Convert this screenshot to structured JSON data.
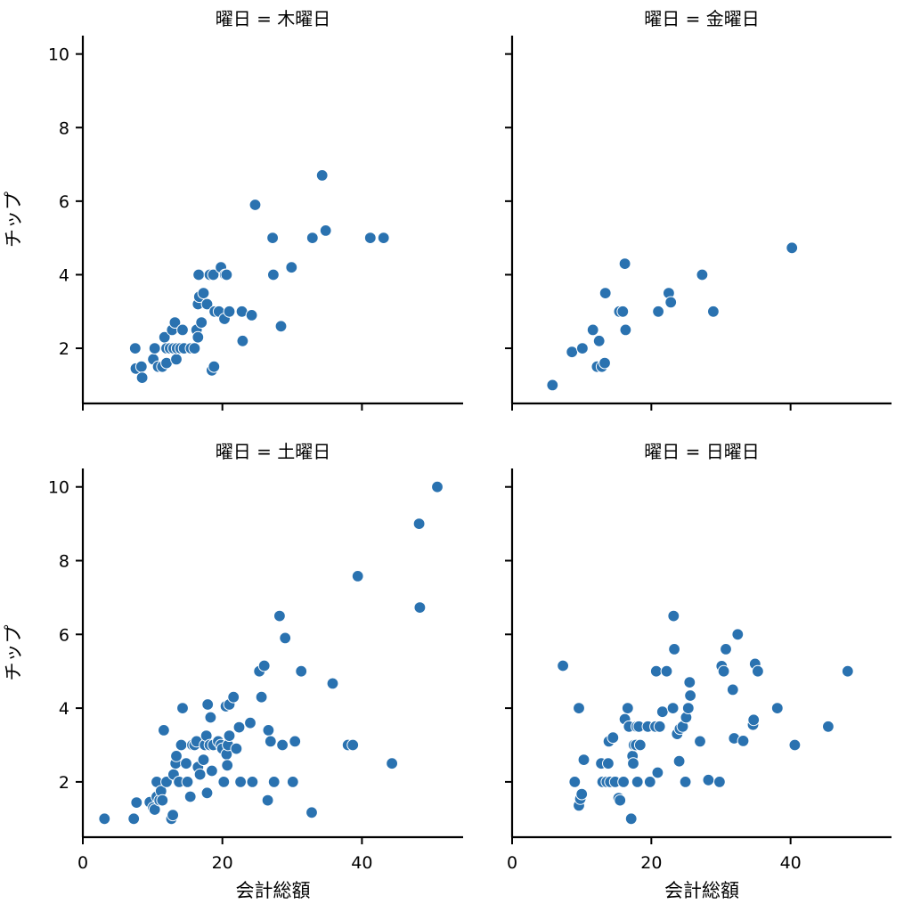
{
  "chart_data": {
    "type": "scatter",
    "xlabel": "会計総額",
    "ylabel": "チップ",
    "xlim": [
      0,
      54.5
    ],
    "ylim": [
      0.5,
      10.5
    ],
    "xticks": [
      "0",
      "20",
      "40"
    ],
    "yticks": [
      "2",
      "4",
      "6",
      "8",
      "10"
    ],
    "grid": false,
    "point_color": "#2a72b0",
    "marker_edge_color": "#ffffff",
    "panels": [
      {
        "title": "曜日 = 木曜日",
        "points": [
          [
            7.5,
            2.0
          ],
          [
            7.6,
            1.45
          ],
          [
            8.4,
            1.5
          ],
          [
            8.5,
            1.2
          ],
          [
            10.1,
            1.7
          ],
          [
            10.3,
            2.0
          ],
          [
            10.8,
            1.5
          ],
          [
            11.4,
            1.5
          ],
          [
            11.7,
            2.3
          ],
          [
            12.0,
            1.6
          ],
          [
            12.0,
            2.0
          ],
          [
            12.5,
            2.0
          ],
          [
            12.8,
            2.5
          ],
          [
            13.0,
            2.0
          ],
          [
            13.2,
            2.7
          ],
          [
            13.4,
            1.7
          ],
          [
            13.5,
            2.0
          ],
          [
            14.0,
            2.0
          ],
          [
            14.3,
            2.5
          ],
          [
            14.5,
            2.0
          ],
          [
            15.5,
            2.0
          ],
          [
            16.0,
            2.0
          ],
          [
            16.3,
            2.5
          ],
          [
            16.5,
            2.3
          ],
          [
            16.5,
            3.2
          ],
          [
            16.6,
            4.0
          ],
          [
            16.7,
            3.4
          ],
          [
            17.0,
            2.7
          ],
          [
            17.3,
            3.5
          ],
          [
            17.8,
            3.2
          ],
          [
            18.2,
            4.0
          ],
          [
            18.5,
            1.4
          ],
          [
            18.7,
            4.0
          ],
          [
            18.8,
            1.5
          ],
          [
            18.9,
            3.0
          ],
          [
            19.5,
            3.0
          ],
          [
            19.8,
            4.2
          ],
          [
            20.3,
            2.8
          ],
          [
            20.4,
            4.0
          ],
          [
            20.6,
            4.0
          ],
          [
            21.0,
            3.0
          ],
          [
            22.8,
            3.0
          ],
          [
            22.9,
            2.2
          ],
          [
            24.2,
            2.9
          ],
          [
            24.7,
            5.9
          ],
          [
            27.2,
            5.0
          ],
          [
            27.3,
            4.0
          ],
          [
            28.4,
            2.6
          ],
          [
            29.9,
            4.2
          ],
          [
            32.9,
            5.0
          ],
          [
            34.3,
            6.7
          ],
          [
            34.8,
            5.2
          ],
          [
            41.2,
            5.0
          ],
          [
            43.1,
            5.0
          ]
        ]
      },
      {
        "title": "曜日 = 金曜日",
        "points": [
          [
            5.8,
            1.0
          ],
          [
            8.6,
            1.9
          ],
          [
            10.1,
            2.0
          ],
          [
            11.6,
            2.5
          ],
          [
            12.2,
            1.5
          ],
          [
            12.5,
            2.2
          ],
          [
            12.9,
            1.5
          ],
          [
            13.3,
            1.6
          ],
          [
            13.4,
            3.5
          ],
          [
            15.4,
            3.0
          ],
          [
            15.9,
            3.0
          ],
          [
            16.2,
            4.3
          ],
          [
            16.3,
            2.5
          ],
          [
            21.0,
            3.0
          ],
          [
            22.5,
            3.5
          ],
          [
            22.8,
            3.25
          ],
          [
            27.3,
            4.0
          ],
          [
            28.9,
            3.0
          ],
          [
            40.2,
            4.73
          ]
        ]
      },
      {
        "title": "曜日 = 土曜日",
        "points": [
          [
            3.1,
            1.0
          ],
          [
            7.3,
            1.0
          ],
          [
            7.7,
            1.44
          ],
          [
            9.6,
            1.45
          ],
          [
            10.1,
            1.3
          ],
          [
            10.3,
            1.25
          ],
          [
            10.6,
            2.0
          ],
          [
            10.6,
            1.6
          ],
          [
            11.0,
            1.5
          ],
          [
            11.2,
            1.75
          ],
          [
            11.4,
            1.5
          ],
          [
            11.6,
            3.4
          ],
          [
            12.0,
            2.0
          ],
          [
            12.7,
            1.0
          ],
          [
            12.9,
            1.1
          ],
          [
            13.0,
            2.2
          ],
          [
            13.3,
            2.5
          ],
          [
            13.4,
            2.7
          ],
          [
            13.8,
            2.0
          ],
          [
            14.1,
            3.0
          ],
          [
            14.3,
            4.0
          ],
          [
            14.8,
            2.5
          ],
          [
            15.0,
            2.0
          ],
          [
            15.4,
            1.6
          ],
          [
            15.7,
            3.0
          ],
          [
            16.0,
            3.0
          ],
          [
            16.3,
            3.1
          ],
          [
            16.5,
            2.4
          ],
          [
            16.8,
            2.2
          ],
          [
            17.3,
            2.6
          ],
          [
            17.5,
            3.0
          ],
          [
            17.7,
            3.25
          ],
          [
            17.8,
            1.7
          ],
          [
            17.9,
            4.1
          ],
          [
            18.2,
            3.0
          ],
          [
            18.3,
            3.75
          ],
          [
            18.5,
            2.3
          ],
          [
            18.7,
            3.0
          ],
          [
            19.4,
            3.1
          ],
          [
            19.8,
            3.0
          ],
          [
            20.0,
            2.9
          ],
          [
            20.2,
            2.0
          ],
          [
            20.5,
            4.05
          ],
          [
            20.6,
            2.75
          ],
          [
            20.7,
            2.45
          ],
          [
            20.8,
            3.0
          ],
          [
            21.0,
            3.25
          ],
          [
            21.0,
            4.1
          ],
          [
            21.6,
            4.3
          ],
          [
            22.0,
            2.9
          ],
          [
            22.4,
            3.48
          ],
          [
            22.6,
            2.0
          ],
          [
            24.0,
            3.6
          ],
          [
            24.3,
            2.0
          ],
          [
            25.3,
            5.0
          ],
          [
            25.6,
            4.3
          ],
          [
            26.0,
            5.15
          ],
          [
            26.5,
            1.5
          ],
          [
            26.6,
            3.4
          ],
          [
            26.9,
            3.1
          ],
          [
            27.4,
            2.0
          ],
          [
            28.2,
            6.5
          ],
          [
            28.6,
            3.0
          ],
          [
            29.0,
            5.9
          ],
          [
            30.1,
            2.0
          ],
          [
            30.4,
            3.1
          ],
          [
            31.3,
            5.0
          ],
          [
            32.8,
            1.17
          ],
          [
            35.8,
            4.67
          ],
          [
            38.0,
            3.0
          ],
          [
            38.7,
            3.0
          ],
          [
            39.4,
            7.58
          ],
          [
            44.3,
            2.5
          ],
          [
            48.2,
            9.0
          ],
          [
            48.3,
            6.73
          ],
          [
            50.8,
            10.0
          ]
        ]
      },
      {
        "title": "曜日 = 日曜日",
        "points": [
          [
            7.3,
            5.15
          ],
          [
            9.0,
            2.0
          ],
          [
            9.6,
            4.0
          ],
          [
            9.6,
            1.36
          ],
          [
            9.8,
            1.54
          ],
          [
            10.0,
            1.67
          ],
          [
            10.3,
            2.6
          ],
          [
            12.8,
            2.5
          ],
          [
            13.0,
            2.0
          ],
          [
            13.6,
            2.0
          ],
          [
            13.8,
            2.5
          ],
          [
            13.9,
            3.1
          ],
          [
            14.1,
            2.0
          ],
          [
            14.5,
            3.2
          ],
          [
            14.8,
            2.0
          ],
          [
            15.3,
            1.56
          ],
          [
            15.5,
            1.5
          ],
          [
            16.0,
            2.0
          ],
          [
            16.2,
            3.7
          ],
          [
            16.6,
            4.0
          ],
          [
            16.8,
            3.5
          ],
          [
            17.1,
            1.0
          ],
          [
            17.3,
            2.7
          ],
          [
            17.4,
            2.5
          ],
          [
            17.5,
            3.0
          ],
          [
            17.8,
            3.0
          ],
          [
            17.9,
            3.5
          ],
          [
            18.0,
            2.0
          ],
          [
            18.2,
            3.5
          ],
          [
            18.4,
            3.0
          ],
          [
            19.5,
            3.5
          ],
          [
            19.8,
            2.0
          ],
          [
            20.6,
            3.5
          ],
          [
            20.7,
            5.0
          ],
          [
            20.9,
            2.25
          ],
          [
            21.2,
            3.5
          ],
          [
            21.6,
            3.9
          ],
          [
            22.2,
            5.0
          ],
          [
            23.1,
            4.0
          ],
          [
            23.2,
            6.5
          ],
          [
            23.3,
            5.6
          ],
          [
            23.7,
            3.3
          ],
          [
            24.0,
            2.56
          ],
          [
            24.1,
            3.44
          ],
          [
            24.5,
            3.5
          ],
          [
            24.9,
            2.0
          ],
          [
            25.0,
            3.75
          ],
          [
            25.3,
            4.0
          ],
          [
            25.5,
            4.7
          ],
          [
            25.6,
            4.34
          ],
          [
            27.0,
            3.1
          ],
          [
            28.2,
            2.05
          ],
          [
            29.8,
            2.0
          ],
          [
            30.1,
            5.14
          ],
          [
            30.4,
            5.0
          ],
          [
            30.7,
            5.6
          ],
          [
            31.7,
            4.5
          ],
          [
            31.9,
            3.18
          ],
          [
            32.4,
            6.0
          ],
          [
            33.2,
            3.11
          ],
          [
            34.6,
            3.55
          ],
          [
            34.7,
            3.68
          ],
          [
            34.9,
            5.2
          ],
          [
            35.3,
            5.0
          ],
          [
            38.1,
            4.0
          ],
          [
            40.6,
            3.0
          ],
          [
            45.4,
            3.5
          ],
          [
            48.2,
            5.0
          ]
        ]
      }
    ]
  }
}
